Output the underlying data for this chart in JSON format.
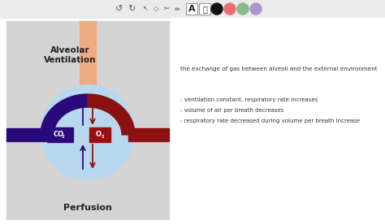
{
  "bg_color": "#ffffff",
  "toolbar_bg": "#ebebeb",
  "diagram_bg": "#d4d4d4",
  "alveolar_text": "Alveolar\nVentilation",
  "perfusion_text": "Perfusion",
  "subtitle": "the exchange of gas between alveoli and the external environment",
  "bullet1": "- ventilation constant, respiratory rate increases",
  "bullet2": "- volume of air per breath decreases",
  "bullet3": "- respiratory rate decreased during volume per breath increase",
  "orange_color": "#f0a878",
  "blue_circle_color": "#b8d8f0",
  "dark_blue_color": "#2a0a7a",
  "dark_red_color": "#8b1010",
  "co2_box_color": "#2a0a7a",
  "o2_box_color": "#991010",
  "dot_colors": [
    "#111111",
    "#e87070",
    "#88bb88",
    "#a898cc"
  ],
  "toolbar_icon_color": "#555555",
  "text_color": "#222222",
  "bullet_color": "#333333"
}
